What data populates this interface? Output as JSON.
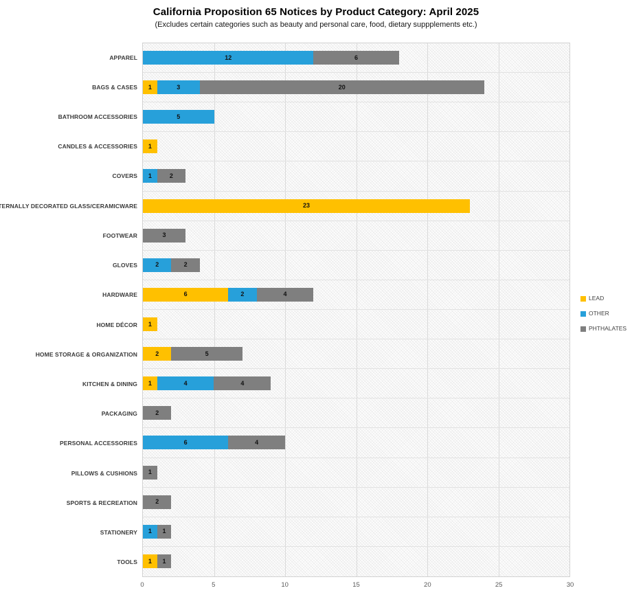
{
  "chart_data": {
    "type": "bar",
    "orientation": "horizontal",
    "stacked": true,
    "title": "California Proposition 65 Notices by Product Category: April 2025",
    "subtitle": "(Excludes certain categories such as beauty and personal care, food, dietary suppplements etc.)",
    "xlabel": "",
    "ylabel": "",
    "xlim": [
      0,
      30
    ],
    "xticks": [
      0,
      5,
      10,
      15,
      20,
      25,
      30
    ],
    "grid": true,
    "legend_position": "right",
    "categories": [
      "APPAREL",
      "BAGS & CASES",
      "BATHROOM ACCESSORIES",
      "CANDLES & ACCESSORIES",
      "COVERS",
      "EXTERNALLY DECORATED GLASS/CERAMICWARE",
      "FOOTWEAR",
      "GLOVES",
      "HARDWARE",
      "HOME DÉCOR",
      "HOME STORAGE & ORGANIZATION",
      "KITCHEN & DINING",
      "PACKAGING",
      "PERSONAL ACCESSORIES",
      "PILLOWS & CUSHIONS",
      "SPORTS & RECREATION",
      "STATIONERY",
      "TOOLS"
    ],
    "series": [
      {
        "name": "LEAD",
        "color": "#FFC000",
        "values": [
          0,
          1,
          0,
          1,
          0,
          23,
          0,
          0,
          6,
          1,
          2,
          1,
          0,
          0,
          0,
          0,
          0,
          1
        ]
      },
      {
        "name": "OTHER",
        "color": "#27A0DA",
        "values": [
          12,
          3,
          5,
          0,
          1,
          0,
          0,
          2,
          2,
          0,
          0,
          4,
          0,
          6,
          0,
          0,
          1,
          0
        ]
      },
      {
        "name": "PHTHALATES",
        "color": "#7F7F7F",
        "values": [
          6,
          20,
          0,
          0,
          2,
          0,
          3,
          2,
          4,
          0,
          5,
          4,
          2,
          4,
          1,
          2,
          1,
          1
        ]
      }
    ]
  }
}
